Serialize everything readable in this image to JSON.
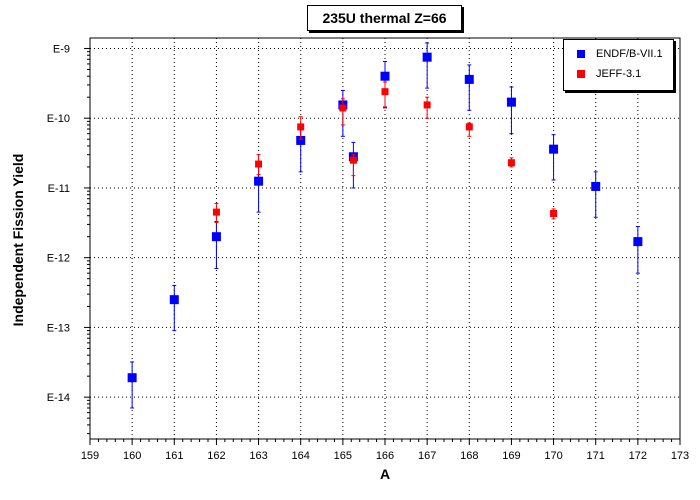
{
  "chart_data": {
    "type": "scatter",
    "title": "235U thermal Z=66",
    "xlabel": "A",
    "ylabel": "Independent Fission Yield",
    "xlim": [
      159,
      173
    ],
    "ylim_log10": [
      -14.6,
      -8.85
    ],
    "yscale": "log",
    "x_ticks": [
      159,
      160,
      161,
      162,
      163,
      164,
      165,
      166,
      167,
      168,
      169,
      170,
      171,
      172,
      173
    ],
    "y_ticks": [
      {
        "exp": -14,
        "label": "E-14"
      },
      {
        "exp": -13,
        "label": "E-13"
      },
      {
        "exp": -12,
        "label": "E-12"
      },
      {
        "exp": -11,
        "label": "E-11"
      },
      {
        "exp": -10,
        "label": "E-10"
      },
      {
        "exp": -9,
        "label": "E-9"
      }
    ],
    "grid": true,
    "legend_position": "top-right",
    "series": [
      {
        "name": "ENDF/B-VII.1",
        "color": "#0000ff",
        "points": [
          {
            "x": 160,
            "y": 1.9e-14,
            "y_low": 7e-15,
            "y_high": 3.2e-14
          },
          {
            "x": 161,
            "y": 2.5e-13,
            "y_low": 9e-14,
            "y_high": 4e-13
          },
          {
            "x": 162,
            "y": 2e-12,
            "y_low": 7e-13,
            "y_high": 3.3e-12
          },
          {
            "x": 163,
            "y": 1.25e-11,
            "y_low": 4.5e-12,
            "y_high": 2e-11
          },
          {
            "x": 164,
            "y": 4.8e-11,
            "y_low": 1.7e-11,
            "y_high": 8e-11
          },
          {
            "x": 165,
            "y": 1.55e-10,
            "y_low": 5.5e-11,
            "y_high": 2.5e-10
          },
          {
            "x": 165.25,
            "y": 2.8e-11,
            "y_low": 1e-11,
            "y_high": 4.5e-11
          },
          {
            "x": 166,
            "y": 4e-10,
            "y_low": 1.45e-10,
            "y_high": 6.5e-10
          },
          {
            "x": 167,
            "y": 7.5e-10,
            "y_low": 2.7e-10,
            "y_high": 1.2e-09
          },
          {
            "x": 168,
            "y": 3.6e-10,
            "y_low": 1.3e-10,
            "y_high": 5.8e-10
          },
          {
            "x": 169,
            "y": 1.7e-10,
            "y_low": 6e-11,
            "y_high": 2.8e-10
          },
          {
            "x": 170,
            "y": 3.6e-11,
            "y_low": 1.3e-11,
            "y_high": 5.8e-11
          },
          {
            "x": 171,
            "y": 1.05e-11,
            "y_low": 3.8e-12,
            "y_high": 1.7e-11
          },
          {
            "x": 172,
            "y": 1.7e-12,
            "y_low": 6e-13,
            "y_high": 2.8e-12
          }
        ]
      },
      {
        "name": "JEFF-3.1",
        "color": "#ff0000",
        "points": [
          {
            "x": 162,
            "y": 4.5e-12,
            "y_low": 3.2e-12,
            "y_high": 6e-12
          },
          {
            "x": 163,
            "y": 2.2e-11,
            "y_low": 1.55e-11,
            "y_high": 3e-11
          },
          {
            "x": 164,
            "y": 7.5e-11,
            "y_low": 5e-11,
            "y_high": 1.05e-10
          },
          {
            "x": 165,
            "y": 1.4e-10,
            "y_low": 8e-11,
            "y_high": 1.9e-10
          },
          {
            "x": 165.25,
            "y": 2.5e-11,
            "y_low": 1.5e-11,
            "y_high": 3e-11
          },
          {
            "x": 166,
            "y": 2.4e-10,
            "y_low": 1.4e-10,
            "y_high": 3.3e-10
          },
          {
            "x": 167,
            "y": 1.55e-10,
            "y_low": 1e-10,
            "y_high": 2e-10
          },
          {
            "x": 168,
            "y": 7.5e-11,
            "y_low": 5.5e-11,
            "y_high": 8.5e-11
          },
          {
            "x": 169,
            "y": 2.3e-11,
            "y_low": 2e-11,
            "y_high": 2.7e-11
          },
          {
            "x": 170,
            "y": 4.3e-12,
            "y_low": 3.6e-12,
            "y_high": 5e-12
          }
        ]
      }
    ]
  }
}
